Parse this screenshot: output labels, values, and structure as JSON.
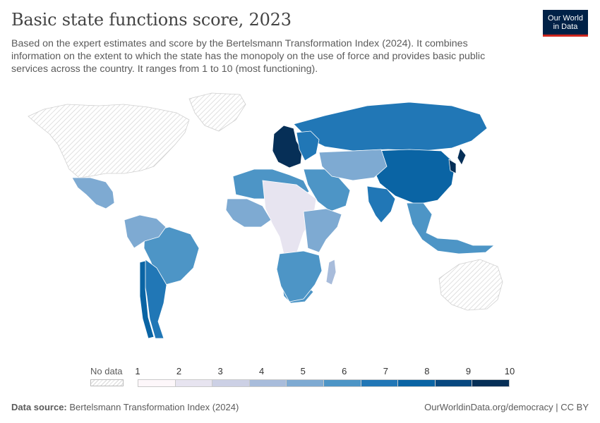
{
  "header": {
    "title": "Basic state functions score, 2023",
    "subtitle": "Based on the expert estimates and score by the Bertelsmann Transformation Index (2024). It combines information on the extent to which the state has the monopoly on the use of force and provides basic public services across the country. It ranges from 1 to 10 (most functioning)."
  },
  "logo": {
    "line1": "Our World",
    "line2": "in Data"
  },
  "legend": {
    "no_data_label": "No data",
    "ticks": [
      "1",
      "2",
      "3",
      "4",
      "5",
      "6",
      "7",
      "8",
      "9",
      "10"
    ],
    "colors": [
      "#fdf7fa",
      "#e7e4f0",
      "#ccd0e5",
      "#a8bcdb",
      "#7eaad2",
      "#4d95c6",
      "#2177b6",
      "#0a64a4",
      "#08487f",
      "#062f57"
    ]
  },
  "footer": {
    "source_label": "Data source:",
    "source_text": "Bertelsmann Transformation Index (2024)",
    "right_text": "OurWorldinData.org/democracy | CC BY"
  },
  "map_regions": [
    {
      "name": "north-america",
      "color": "nodata"
    },
    {
      "name": "greenland",
      "color": "nodata"
    },
    {
      "name": "australia",
      "color": "nodata"
    },
    {
      "name": "russia",
      "color": 7
    },
    {
      "name": "china",
      "color": 8
    },
    {
      "name": "india",
      "color": 7
    },
    {
      "name": "brazil",
      "color": 6
    },
    {
      "name": "argentina",
      "color": 7
    },
    {
      "name": "chile",
      "color": 8
    },
    {
      "name": "south-africa",
      "color": 6
    },
    {
      "name": "mexico",
      "color": 5
    },
    {
      "name": "western-europe",
      "color": 10
    },
    {
      "name": "eastern-europe",
      "color": 7
    },
    {
      "name": "middle-east",
      "color": 6
    },
    {
      "name": "north-africa",
      "color": 6
    },
    {
      "name": "sahel-central-africa",
      "color": 2
    },
    {
      "name": "west-africa",
      "color": 5
    },
    {
      "name": "east-africa",
      "color": 5
    },
    {
      "name": "southern-africa",
      "color": 6
    },
    {
      "name": "central-asia",
      "color": 5
    },
    {
      "name": "southeast-asia",
      "color": 6
    },
    {
      "name": "andes-south-america",
      "color": 5
    },
    {
      "name": "japan-korea",
      "color": 10
    },
    {
      "name": "madagascar",
      "color": 4
    }
  ]
}
